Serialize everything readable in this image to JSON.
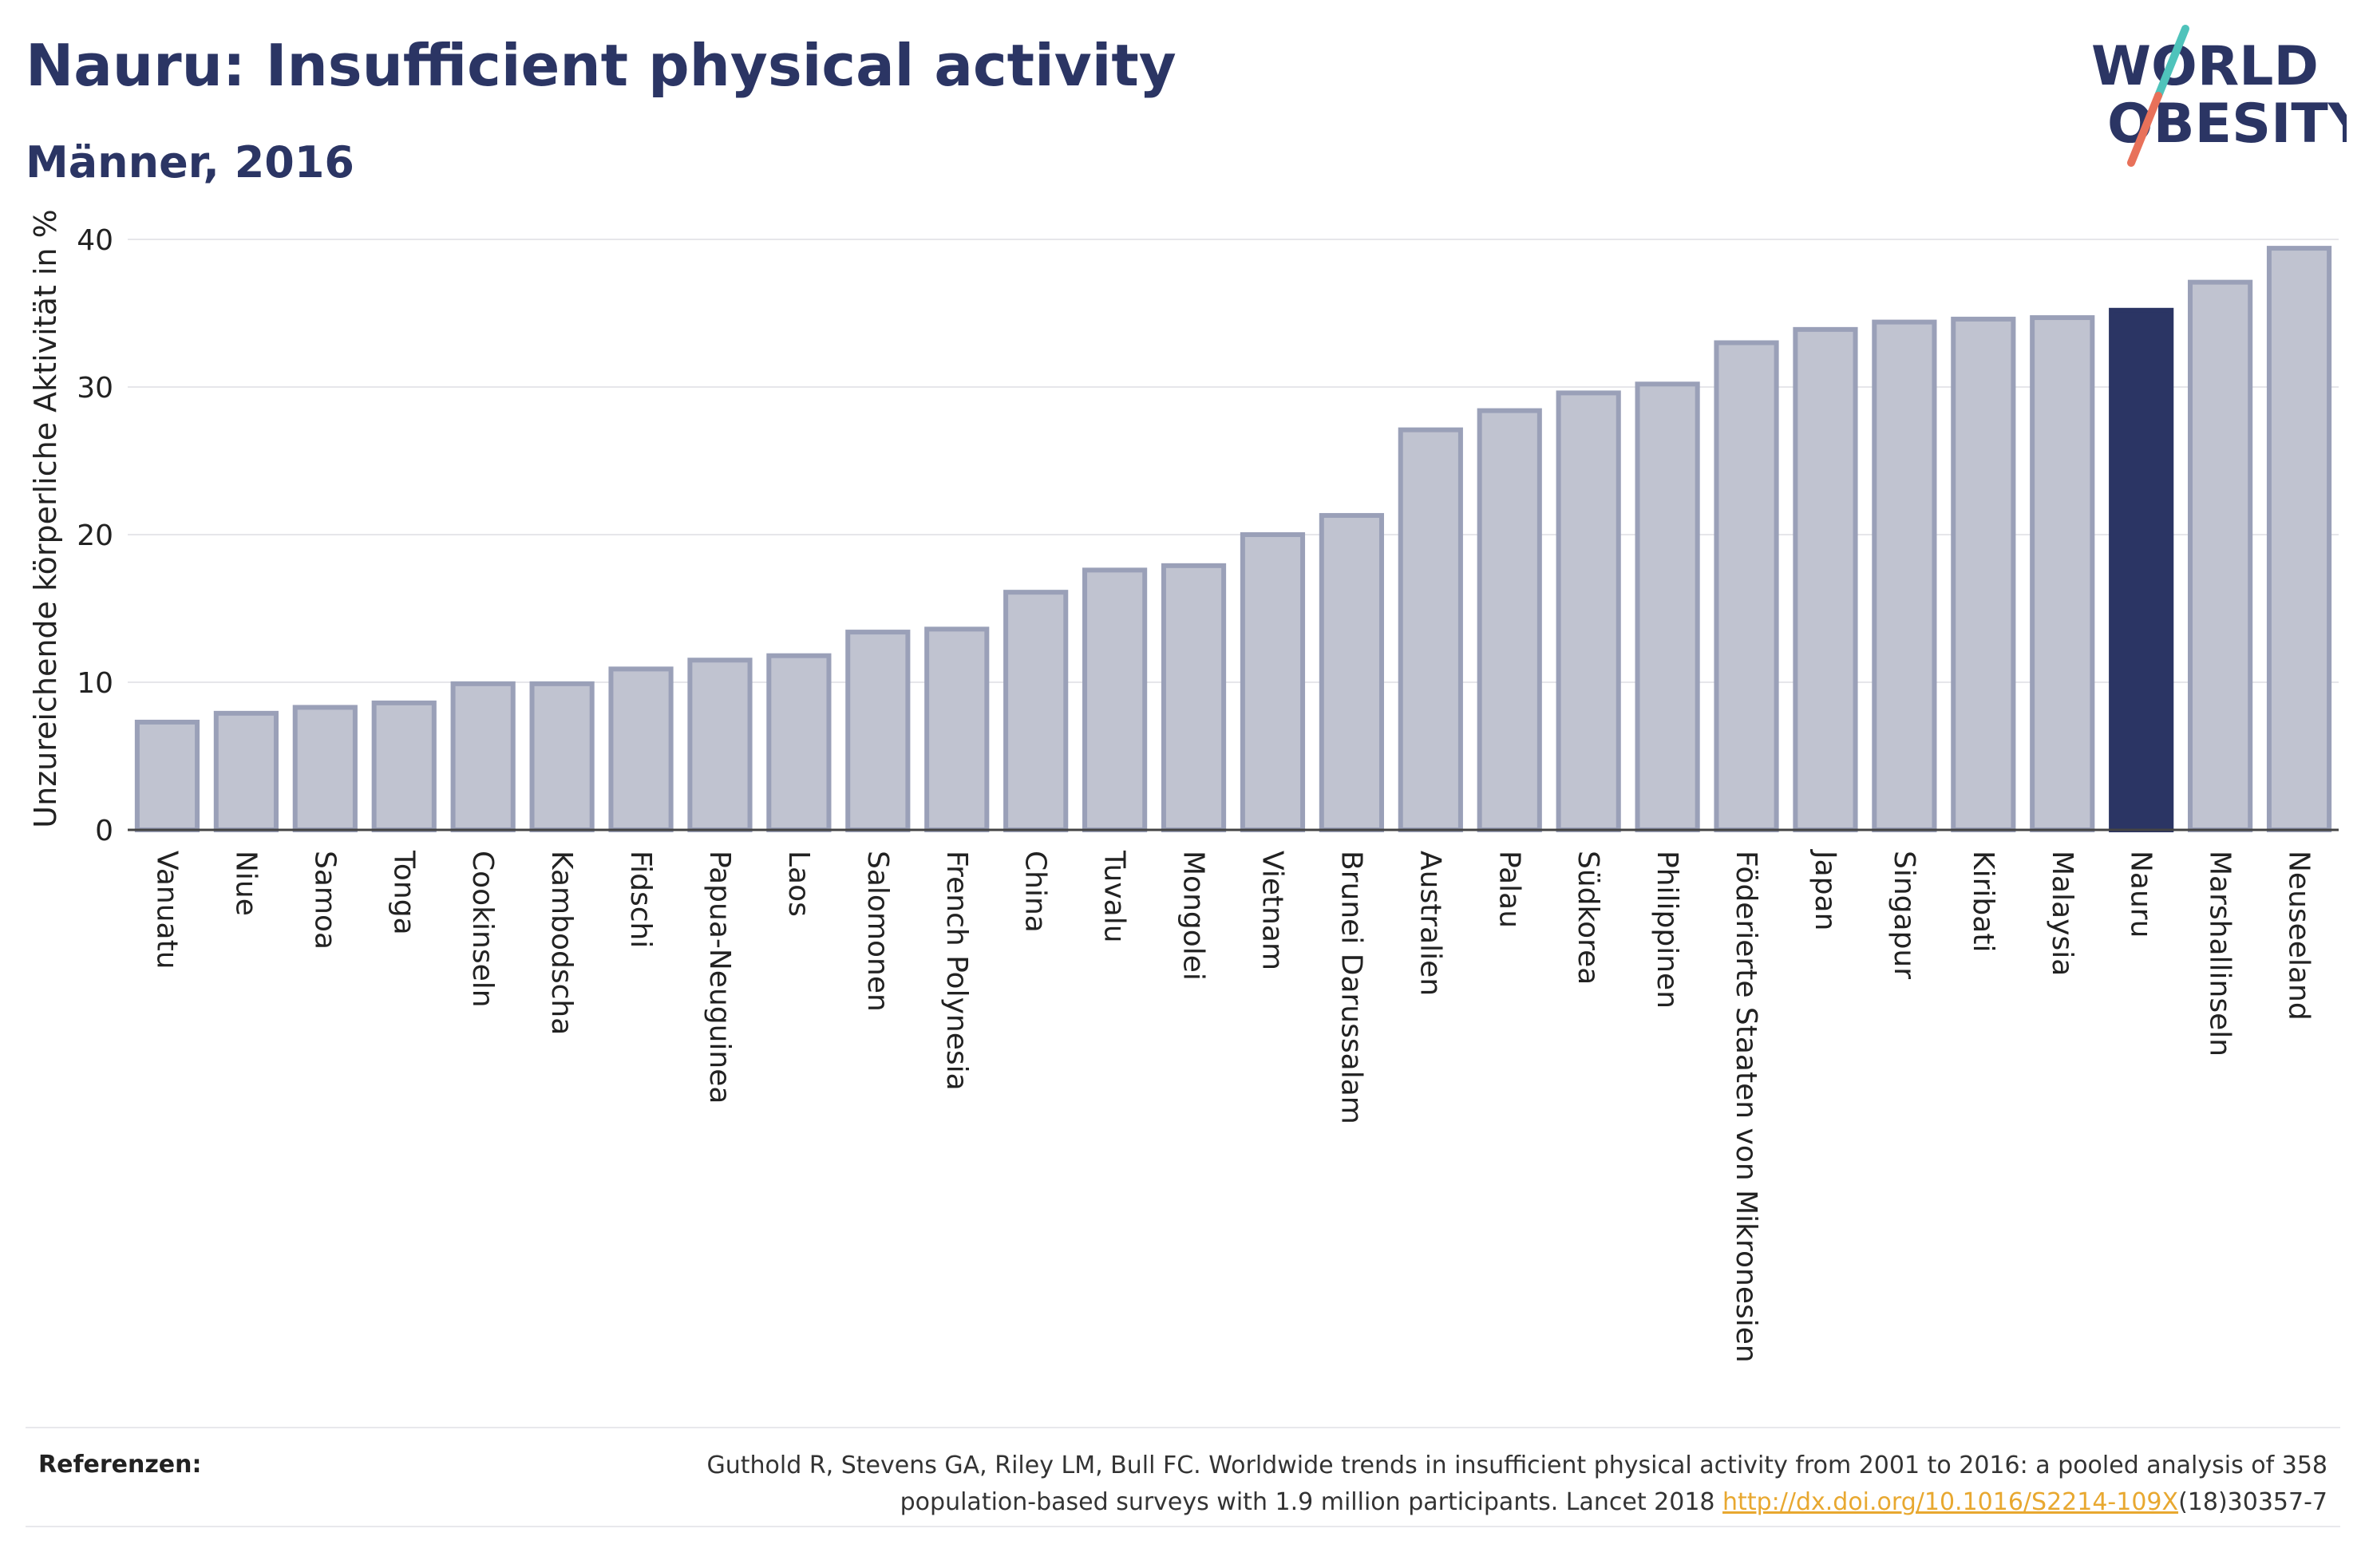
{
  "header": {
    "title": "Nauru: Insufficient physical activity",
    "subtitle": "Männer, 2016"
  },
  "logo": {
    "line1": "WORLD",
    "line2": "OBESITY",
    "accent_colors": [
      "#4fc3bb",
      "#e8715a"
    ]
  },
  "chart_data": {
    "type": "bar",
    "ylabel": "Unzureichende körperliche Aktivität in %",
    "xlabel": "",
    "ylim": [
      0,
      40
    ],
    "yticks": [
      0,
      10,
      20,
      30,
      40
    ],
    "grid": true,
    "highlight": "Nauru",
    "colors": {
      "bar": "#c0c3d0",
      "bar_border": "#9aa0b8",
      "highlight": "#2b3564"
    },
    "categories": [
      "Vanuatu",
      "Niue",
      "Samoa",
      "Tonga",
      "Cookinseln",
      "Kambodscha",
      "Fidschi",
      "Papua-Neuguinea",
      "Laos",
      "Salomonen",
      "French Polynesia",
      "China",
      "Tuvalu",
      "Mongolei",
      "Vietnam",
      "Brunei Darussalam",
      "Australien",
      "Palau",
      "Südkorea",
      "Philippinen",
      "Föderierte Staaten von Mikronesien",
      "Japan",
      "Singapur",
      "Kiribati",
      "Malaysia",
      "Nauru",
      "Marshallinseln",
      "Neuseeland"
    ],
    "values": [
      7.3,
      7.9,
      8.3,
      8.6,
      9.9,
      9.9,
      10.9,
      11.5,
      11.8,
      13.4,
      13.6,
      16.1,
      17.6,
      17.9,
      20.0,
      21.3,
      27.1,
      28.4,
      29.6,
      30.2,
      33.0,
      33.9,
      34.4,
      34.6,
      34.7,
      35.2,
      37.1,
      39.4
    ]
  },
  "references": {
    "label": "Referenzen:",
    "text_line1": "Guthold R, Stevens GA, Riley LM, Bull FC. Worldwide trends in insufficient physical activity from 2001 to 2016: a pooled analysis of 358",
    "text_line2_prefix": "population-based surveys with 1.9 million participants. Lancet 2018 ",
    "link": "http://dx.doi.org/10.1016/S2214-109X",
    "text_line2_suffix": "(18)30357-7"
  }
}
